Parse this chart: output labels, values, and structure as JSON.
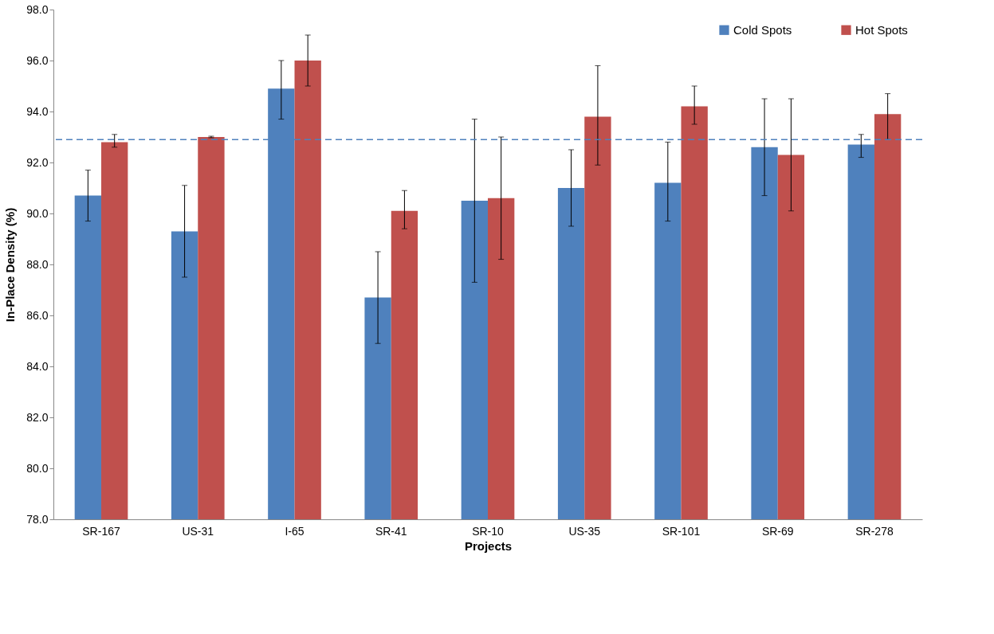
{
  "chart_data": {
    "type": "bar",
    "xlabel": "Projects",
    "ylabel": "In-Place Density (%)",
    "categories": [
      "SR-167",
      "US-31",
      "I-65",
      "SR-41",
      "SR-10",
      "US-35",
      "SR-101",
      "SR-69",
      "SR-278"
    ],
    "series": [
      {
        "name": "Cold Spots",
        "color": "#4f81bd",
        "values": [
          90.7,
          89.3,
          94.9,
          86.7,
          90.5,
          91.0,
          91.2,
          92.6,
          92.7
        ],
        "errors": [
          [
            89.7,
            91.7
          ],
          [
            87.5,
            91.1
          ],
          [
            93.7,
            96.0
          ],
          [
            84.9,
            88.5
          ],
          [
            87.3,
            93.7
          ],
          [
            89.5,
            92.5
          ],
          [
            89.7,
            92.8
          ],
          [
            90.7,
            94.5
          ],
          [
            92.2,
            93.1
          ]
        ]
      },
      {
        "name": "Hot Spots",
        "color": "#c0504d",
        "values": [
          92.8,
          93.0,
          96.0,
          90.1,
          90.6,
          93.8,
          94.2,
          92.3,
          93.9
        ],
        "errors": [
          [
            92.6,
            93.1
          ],
          [
            92.97,
            93.03
          ],
          [
            95.0,
            97.0
          ],
          [
            89.4,
            90.9
          ],
          [
            88.2,
            93.0
          ],
          [
            91.9,
            95.8
          ],
          [
            93.5,
            95.0
          ],
          [
            90.1,
            94.5
          ],
          [
            92.9,
            94.7
          ]
        ]
      }
    ],
    "ylim": [
      78,
      98
    ],
    "yticks": [
      {
        "value": 78,
        "label": "78.0"
      },
      {
        "value": 80,
        "label": "80.0"
      },
      {
        "value": 82,
        "label": "82.0"
      },
      {
        "value": 84,
        "label": "84.0"
      },
      {
        "value": 86,
        "label": "86.0"
      },
      {
        "value": 88,
        "label": "88.0"
      },
      {
        "value": 90,
        "label": "90.0"
      },
      {
        "value": 92,
        "label": "92.0"
      },
      {
        "value": 94,
        "label": "94.0"
      },
      {
        "value": 96,
        "label": "96.0"
      },
      {
        "value": 98,
        "label": "98.0"
      }
    ],
    "ref_lines": [
      {
        "axis": "y",
        "value": 92.9,
        "color": "#4f81bd",
        "line_style": "dashed"
      }
    ],
    "grid": false,
    "legend": "top right"
  }
}
